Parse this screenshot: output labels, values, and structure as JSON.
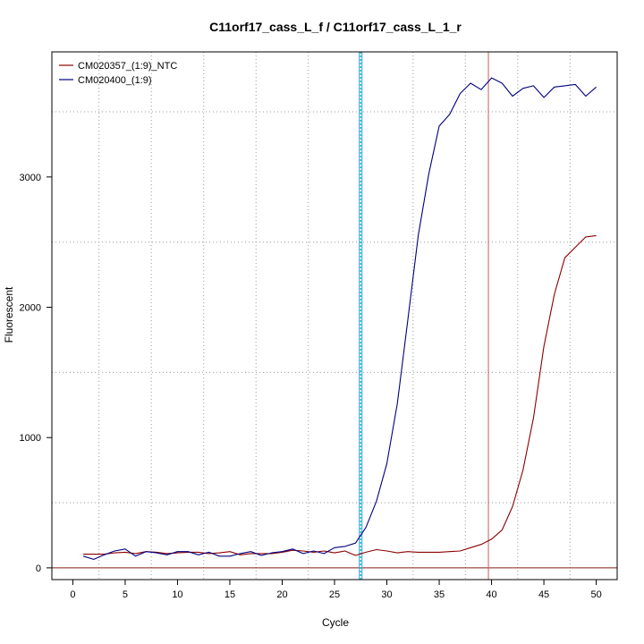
{
  "chart_data": {
    "type": "line",
    "title": "C11orf17_cass_L_f / C11orf17_cass_L_1_r",
    "xlabel": "Cycle",
    "ylabel": "Fluorescent",
    "xlim": [
      -2,
      52
    ],
    "ylim": [
      -90,
      3960
    ],
    "x_ticks": [
      0,
      5,
      10,
      15,
      20,
      25,
      30,
      35,
      40,
      45,
      50
    ],
    "y_ticks": [
      0,
      1000,
      2000,
      3000
    ],
    "grid": true,
    "legend_position": "top-left",
    "threshold": {
      "value": 0,
      "color": "#8B1A1A"
    },
    "vertical_markers": [
      {
        "x": 27.5,
        "color": "#00CED1"
      },
      {
        "x": 39.7,
        "color": "#CD5C5C"
      }
    ],
    "x": [
      1,
      2,
      3,
      4,
      5,
      6,
      7,
      8,
      9,
      10,
      11,
      12,
      13,
      14,
      15,
      16,
      17,
      18,
      19,
      20,
      21,
      22,
      23,
      24,
      25,
      26,
      27,
      28,
      29,
      30,
      31,
      32,
      33,
      34,
      35,
      36,
      37,
      38,
      39,
      40,
      41,
      42,
      43,
      44,
      45,
      46,
      47,
      48,
      49,
      50
    ],
    "series": [
      {
        "name": "CM020357_(1:9)_NTC",
        "color": "#8B0000",
        "values": [
          105,
          105,
          105,
          115,
          120,
          110,
          125,
          120,
          110,
          115,
          120,
          120,
          110,
          115,
          125,
          100,
          110,
          110,
          110,
          120,
          135,
          130,
          120,
          130,
          115,
          130,
          95,
          120,
          140,
          130,
          115,
          125,
          120,
          120,
          120,
          125,
          130,
          155,
          180,
          220,
          290,
          470,
          750,
          1150,
          1700,
          2100,
          2380,
          2460,
          2540,
          2550
        ]
      },
      {
        "name": "CM020400_(1:9)",
        "color": "#000080",
        "values": [
          90,
          65,
          100,
          130,
          145,
          90,
          125,
          115,
          100,
          125,
          125,
          100,
          120,
          90,
          90,
          110,
          125,
          95,
          115,
          125,
          145,
          110,
          130,
          110,
          155,
          165,
          190,
          310,
          510,
          800,
          1260,
          1900,
          2550,
          3020,
          3390,
          3480,
          3640,
          3720,
          3670,
          3760,
          3720,
          3620,
          3680,
          3700,
          3610,
          3690,
          3700,
          3710,
          3620,
          3690
        ]
      }
    ]
  }
}
